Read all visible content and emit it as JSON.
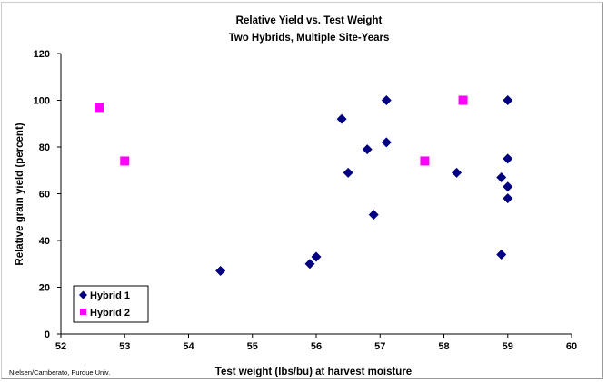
{
  "chart_data": {
    "type": "scatter",
    "title": "Relative Yield vs. Test Weight",
    "subtitle": "Two Hybrids, Multiple Site-Years",
    "xlabel": "Test weight (lbs/bu) at harvest moisture",
    "ylabel": "Relative grain yield (percent)",
    "xlim": [
      52,
      60
    ],
    "ylim": [
      0,
      120
    ],
    "x_ticks": [
      "52",
      "53",
      "54",
      "55",
      "56",
      "57",
      "58",
      "59",
      "60"
    ],
    "y_ticks": [
      "0",
      "20",
      "40",
      "60",
      "80",
      "100",
      "120"
    ],
    "grid": false,
    "legend_position": "bottom-left",
    "series": [
      {
        "name": "Hybrid 1",
        "marker": "diamond",
        "color": "#000080",
        "points": [
          [
            54.5,
            27
          ],
          [
            55.9,
            30
          ],
          [
            56.0,
            33
          ],
          [
            56.4,
            92
          ],
          [
            56.5,
            69
          ],
          [
            56.8,
            79
          ],
          [
            56.9,
            51
          ],
          [
            57.1,
            100
          ],
          [
            57.1,
            82
          ],
          [
            58.2,
            69
          ],
          [
            58.9,
            67
          ],
          [
            58.9,
            34
          ],
          [
            59.0,
            100
          ],
          [
            59.0,
            75
          ],
          [
            59.0,
            63
          ],
          [
            59.0,
            58
          ]
        ]
      },
      {
        "name": "Hybrid 2",
        "marker": "square",
        "color": "#ff00ff",
        "points": [
          [
            52.6,
            97
          ],
          [
            53.0,
            74
          ],
          [
            57.7,
            74
          ],
          [
            58.3,
            100
          ]
        ]
      }
    ],
    "credit": "Nielsen/Camberato, Purdue Univ."
  }
}
